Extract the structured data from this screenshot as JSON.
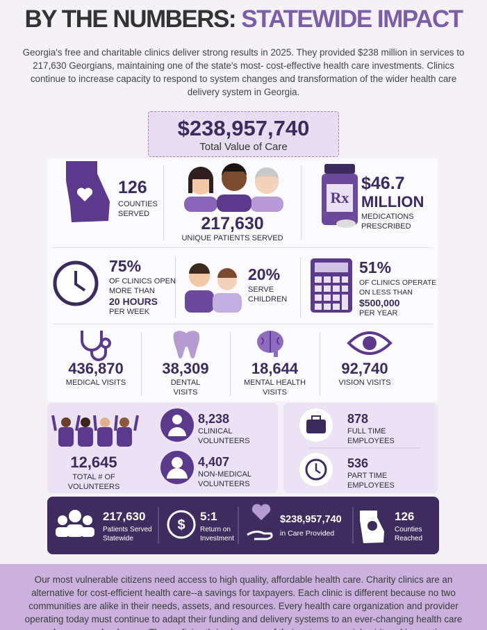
{
  "header": {
    "title_dark": "BY THE NUMBERS:",
    "title_accent": "STATEWIDE IMPACT",
    "intro": "Georgia's free and charitable clinics deliver strong results in 2025. They provided $238 million in services to 217,630 Georgians, maintaining one of the state's most- cost-effective health care investments. Clinics continue to increase capacity to respond to system changes and transformation of the wider health care delivery system in Georgia."
  },
  "total": {
    "value": "$238,957,740",
    "label": "Total Value of Care"
  },
  "row1": [
    {
      "value": "126",
      "label": "COUNTIES SERVED"
    },
    {
      "value": "217,630",
      "label": "UNIQUE PATIENTS SERVED"
    },
    {
      "value": "$46.7",
      "unit": "MILLION",
      "label": "MEDICATIONS PRESCRIBED"
    }
  ],
  "row2": [
    {
      "value": "75%",
      "label": "OF CLINICS OPEN MORE THAN",
      "emphasis": "20 HOURS",
      "suffix": "PER WEEK"
    },
    {
      "value": "20%",
      "label": "SERVE CHILDREN"
    },
    {
      "value": "51%",
      "label": "OF CLINICS OPERATE ON LESS THAN",
      "emphasis": "$500,000",
      "suffix": "PER YEAR"
    }
  ],
  "visits": [
    {
      "value": "436,870",
      "label": "MEDICAL VISITS"
    },
    {
      "value": "38,309",
      "label": "DENTAL VISITS"
    },
    {
      "value": "18,644",
      "label": "MENTAL HEALTH VISITS"
    },
    {
      "value": "92,740",
      "label": "VISION VISITS"
    }
  ],
  "volunteers": {
    "total": {
      "value": "12,645",
      "label": "TOTAL # OF VOLUNTEERS"
    },
    "clinical": {
      "value": "8,238",
      "label": "CLINICAL VOLUNTEERS"
    },
    "non_medical": {
      "value": "4,407",
      "label": "NON-MEDICAL VOLUNTEERS"
    }
  },
  "employees": {
    "full_time": {
      "value": "878",
      "label": "FULL TIME EMPLOYEES"
    },
    "part_time": {
      "value": "536",
      "label": "PART TIME EMPLOYEES"
    }
  },
  "summary": [
    {
      "value": "217,630",
      "label": "Patients Served Statewide"
    },
    {
      "value": "5:1",
      "label": "Return on Investment"
    },
    {
      "value": "$238,957,740",
      "label": "in Care Provided"
    },
    {
      "value": "126",
      "label": "Counties Reached"
    }
  ],
  "footer": {
    "text": "Our most vulnerable citizens need access to high quality, affordable health care. Charity clinics are an alternative for cost-efficient health care--a savings for taxpayers. Each clinic is different because no two communities are alike in their needs, assets, and resources. Every health care organization and provider operating today must continue to adapt their funding and delivery systems to an ever-changing health care and consumer landscape. These clinics thrive because of their entrepreneurial spirit and innovative"
  }
}
